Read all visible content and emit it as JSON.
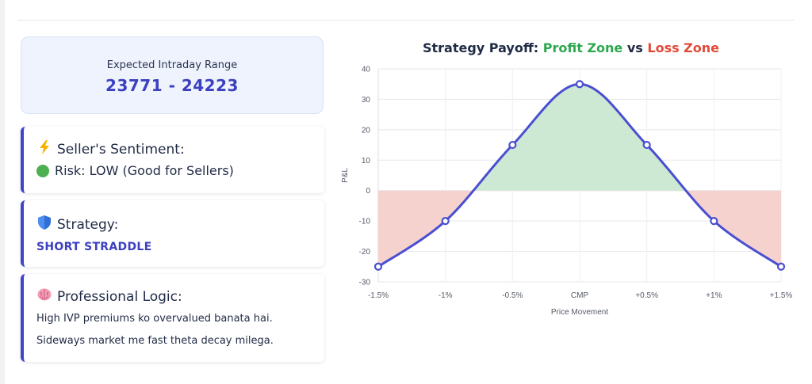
{
  "range": {
    "label": "Expected Intraday Range",
    "value": "23771 - 24223"
  },
  "sentiment": {
    "icon": "lightning-icon",
    "heading": "Seller's Sentiment:",
    "status_icon": "green-circle-icon",
    "risk_text": "Risk: LOW (Good for Sellers)"
  },
  "strategy": {
    "icon": "shield-icon",
    "heading": "Strategy:",
    "name": "SHORT STRADDLE"
  },
  "logic": {
    "icon": "brain-icon",
    "heading": "Professional Logic:",
    "line1": "High IVP premiums ko overvalued banata hai.",
    "line2": "Sideways market me fast theta decay milega."
  },
  "colors": {
    "accent": "#3c3fbf",
    "profit": "#2ea84f",
    "loss": "#e04b3a",
    "line": "#4a4fd1",
    "profit_fill": "#cde9d4",
    "loss_fill": "#f6d2cf"
  },
  "chart_data": {
    "type": "area",
    "title": {
      "prefix": "Strategy Payoff: ",
      "profit": "Profit Zone",
      "joiner": " vs ",
      "loss": "Loss Zone"
    },
    "xlabel": "Price Movement",
    "ylabel": "P&L",
    "categories": [
      "-1.5%",
      "-1%",
      "-0.5%",
      "CMP",
      "+0.5%",
      "+1%",
      "+1.5%"
    ],
    "values": [
      -25,
      -10,
      15,
      35,
      15,
      -10,
      -25
    ],
    "ylim": [
      -30,
      40
    ],
    "yticks": [
      -30,
      -20,
      -10,
      0,
      10,
      20,
      30,
      40
    ],
    "grid": true,
    "legend": "none"
  }
}
